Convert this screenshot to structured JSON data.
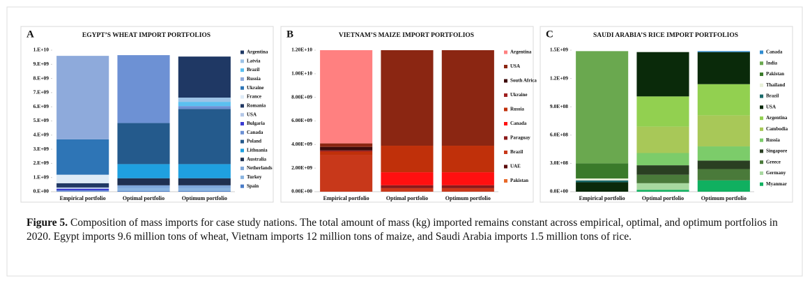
{
  "chart_data": [
    {
      "type": "stacked-bar",
      "panel": "A",
      "title": "EGYPT’S WHEAT IMPORT PORTFOLIOS",
      "categories": [
        "Empirical portfolio",
        "Optimal portfolio",
        "Optimum portfolio"
      ],
      "ylim": [
        0,
        10000000000
      ],
      "yticks": [
        {
          "value": 0,
          "label": "0.E+00"
        },
        {
          "value": 1000000000,
          "label": "1.E+09"
        },
        {
          "value": 2000000000,
          "label": "2.E+09"
        },
        {
          "value": 3000000000,
          "label": "3.E+09"
        },
        {
          "value": 4000000000,
          "label": "4.E+09"
        },
        {
          "value": 5000000000,
          "label": "5.E+09"
        },
        {
          "value": 6000000000,
          "label": "6.E+09"
        },
        {
          "value": 7000000000,
          "label": "7.E+09"
        },
        {
          "value": 8000000000,
          "label": "8.E+09"
        },
        {
          "value": 9000000000,
          "label": "9.E+09"
        },
        {
          "value": 10000000000,
          "label": "1.E+10"
        }
      ],
      "series": [
        {
          "name": "Argentina",
          "color": "#1f3864",
          "values": [
            0,
            0,
            2900000000
          ]
        },
        {
          "name": "Latvia",
          "color": "#9dc3e6",
          "values": [
            0,
            0,
            300000000
          ]
        },
        {
          "name": "Brazil",
          "color": "#5bc0f0",
          "values": [
            0,
            0,
            300000000
          ]
        },
        {
          "name": "Russia",
          "color": "#8eaadb",
          "values": [
            5900000000,
            0,
            0
          ]
        },
        {
          "name": "Ukraine",
          "color": "#2e75b6",
          "values": [
            2500000000,
            0,
            0
          ]
        },
        {
          "name": "France",
          "color": "#deebf7",
          "values": [
            600000000,
            0,
            0
          ]
        },
        {
          "name": "Romania",
          "color": "#203864",
          "values": [
            300000000,
            0,
            0
          ]
        },
        {
          "name": "USA",
          "color": "#b4c7e7",
          "values": [
            100000000,
            0,
            0
          ]
        },
        {
          "name": "Bulgaria",
          "color": "#3a3ad0",
          "values": [
            100000000,
            0,
            0
          ]
        },
        {
          "name": "Canada",
          "color": "#6d91d4",
          "values": [
            100000000,
            4800000000,
            200000000
          ]
        },
        {
          "name": "Poland",
          "color": "#245a8c",
          "values": [
            0,
            2900000000,
            3900000000
          ]
        },
        {
          "name": "Lithuania",
          "color": "#1fa0e0",
          "values": [
            0,
            1000000000,
            1000000000
          ]
        },
        {
          "name": "Australia",
          "color": "#1f3050",
          "values": [
            0,
            500000000,
            500000000
          ]
        },
        {
          "name": "Netherlands",
          "color": "#7da6d9",
          "values": [
            0,
            200000000,
            200000000
          ]
        },
        {
          "name": "Turkey",
          "color": "#8ab4e0",
          "values": [
            0,
            200000000,
            200000000
          ]
        },
        {
          "name": "Spain",
          "color": "#4a7cc8",
          "values": [
            0,
            50000000,
            50000000
          ]
        }
      ]
    },
    {
      "type": "stacked-bar",
      "panel": "B",
      "title": "VIETNAM’S MAIZE IMPORT PORTFOLIOS",
      "categories": [
        "Empirical portfolio",
        "Optimal portfolio",
        "Optimum portfolio"
      ],
      "ylim": [
        0,
        12000000000
      ],
      "yticks": [
        {
          "value": 0,
          "label": "0.00E+00"
        },
        {
          "value": 2000000000,
          "label": "2.00E+09"
        },
        {
          "value": 4000000000,
          "label": "4.00E+09"
        },
        {
          "value": 6000000000,
          "label": "6.00E+09"
        },
        {
          "value": 8000000000,
          "label": "8.00E+09"
        },
        {
          "value": 10000000000,
          "label": "1.00E+10"
        },
        {
          "value": 12000000000,
          "label": "1.20E+10"
        }
      ],
      "series": [
        {
          "name": "Argentina",
          "color": "#ff8080",
          "values": [
            7900000000,
            0,
            0
          ]
        },
        {
          "name": "USA",
          "color": "#8b2612",
          "values": [
            300000000,
            8100000000,
            8100000000
          ]
        },
        {
          "name": "South Africa",
          "color": "#3d0a0a",
          "values": [
            300000000,
            0,
            0
          ]
        },
        {
          "name": "Ukraine",
          "color": "#a02020",
          "values": [
            100000000,
            0,
            0
          ]
        },
        {
          "name": "Russia",
          "color": "#c0300a",
          "values": [
            300000000,
            2250000000,
            2250000000
          ]
        },
        {
          "name": "Canada",
          "color": "#ff1010",
          "values": [
            0,
            1100000000,
            1100000000
          ]
        },
        {
          "name": "Paraguay",
          "color": "#8b1a1a",
          "values": [
            0,
            250000000,
            250000000
          ]
        },
        {
          "name": "Brazil",
          "color": "#c8381a",
          "values": [
            3100000000,
            300000000,
            300000000
          ]
        },
        {
          "name": "UAE",
          "color": "#5a0a0a",
          "values": [
            0,
            0,
            0
          ]
        },
        {
          "name": "Pakistan",
          "color": "#e86a2a",
          "values": [
            0,
            0,
            0
          ]
        }
      ]
    },
    {
      "type": "stacked-bar",
      "panel": "C",
      "title": "SAUDI ARABIA’S RICE IMPORT PORTFOLIOS",
      "categories": [
        "Empirical portfolio",
        "Optimal portfolio",
        "Optimum portfolio"
      ],
      "ylim": [
        0,
        1500000000
      ],
      "yticks": [
        {
          "value": 0,
          "label": "0.0E+00"
        },
        {
          "value": 300000000,
          "label": "3.0E+08"
        },
        {
          "value": 600000000,
          "label": "6.0E+08"
        },
        {
          "value": 900000000,
          "label": "9.0E+08"
        },
        {
          "value": 1200000000,
          "label": "1.2E+09"
        },
        {
          "value": 1500000000,
          "label": "1.5E+09"
        }
      ],
      "series": [
        {
          "name": "Canada",
          "color": "#2e8bd0",
          "values": [
            0,
            0,
            10000000
          ]
        },
        {
          "name": "India",
          "color": "#6aa84f",
          "values": [
            1190000000,
            0,
            0
          ]
        },
        {
          "name": "Pakistan",
          "color": "#3a7a2a",
          "values": [
            160000000,
            0,
            0
          ]
        },
        {
          "name": "Thailand",
          "color": "#e8f0d8",
          "values": [
            20000000,
            0,
            0
          ]
        },
        {
          "name": "Brazil",
          "color": "#1a6a6a",
          "values": [
            20000000,
            0,
            0
          ]
        },
        {
          "name": "USA",
          "color": "#0a2a0a",
          "values": [
            100000000,
            470000000,
            340000000
          ]
        },
        {
          "name": "Argentina",
          "color": "#92d050",
          "values": [
            0,
            320000000,
            330000000
          ]
        },
        {
          "name": "Cambodia",
          "color": "#a8c858",
          "values": [
            0,
            280000000,
            330000000
          ]
        },
        {
          "name": "Russia",
          "color": "#7ccc6a",
          "values": [
            0,
            130000000,
            150000000
          ]
        },
        {
          "name": "Singapore",
          "color": "#2a3f22",
          "values": [
            0,
            100000000,
            90000000
          ]
        },
        {
          "name": "Greece",
          "color": "#4a7a3a",
          "values": [
            0,
            90000000,
            120000000
          ]
        },
        {
          "name": "Germany",
          "color": "#a8d8a0",
          "values": [
            0,
            70000000,
            0
          ]
        },
        {
          "name": "Myanmar",
          "color": "#10b060",
          "values": [
            0,
            20000000,
            120000000
          ]
        }
      ]
    }
  ],
  "caption": {
    "label": "Figure 5.",
    "text": "Composition of mass imports for case study nations. The total amount of mass (kg) imported remains constant across empirical, optimal, and optimum portfolios in 2020. Egypt imports 9.6 million tons of wheat, Vietnam imports 12 million tons of maize, and Saudi Arabia imports 1.5 million tons of rice."
  }
}
